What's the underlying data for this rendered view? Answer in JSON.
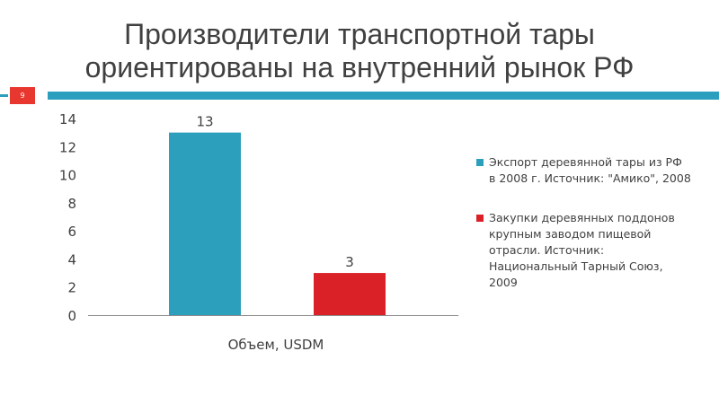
{
  "slide": {
    "title_line1": "Производители транспортной тары",
    "title_line2": "ориентированы на внутренний рынок РФ",
    "slide_number": "9"
  },
  "colors": {
    "accent": "#2b9fbd",
    "badge": "#e8372e",
    "series1": "#2c9fbd",
    "series2": "#db2128",
    "text": "#404040",
    "axis": "#8c8c8c"
  },
  "chart_data": {
    "type": "bar",
    "categories": [
      "Объем, USDM"
    ],
    "ylim": [
      0,
      14
    ],
    "yticks": [
      "0",
      "2",
      "4",
      "6",
      "8",
      "10",
      "12",
      "14"
    ],
    "grid": false,
    "legend_position": "right",
    "series": [
      {
        "name": "Экспорт деревянной тары из РФ в 2008 г. Источник: \"Амико\", 2008",
        "values": [
          13
        ],
        "label": "13"
      },
      {
        "name": "Закупки деревянных поддонов крупным заводом пищевой отрасли. Источник: Национальный Тарный Союз, 2009",
        "values": [
          3
        ],
        "label": "3"
      }
    ]
  }
}
